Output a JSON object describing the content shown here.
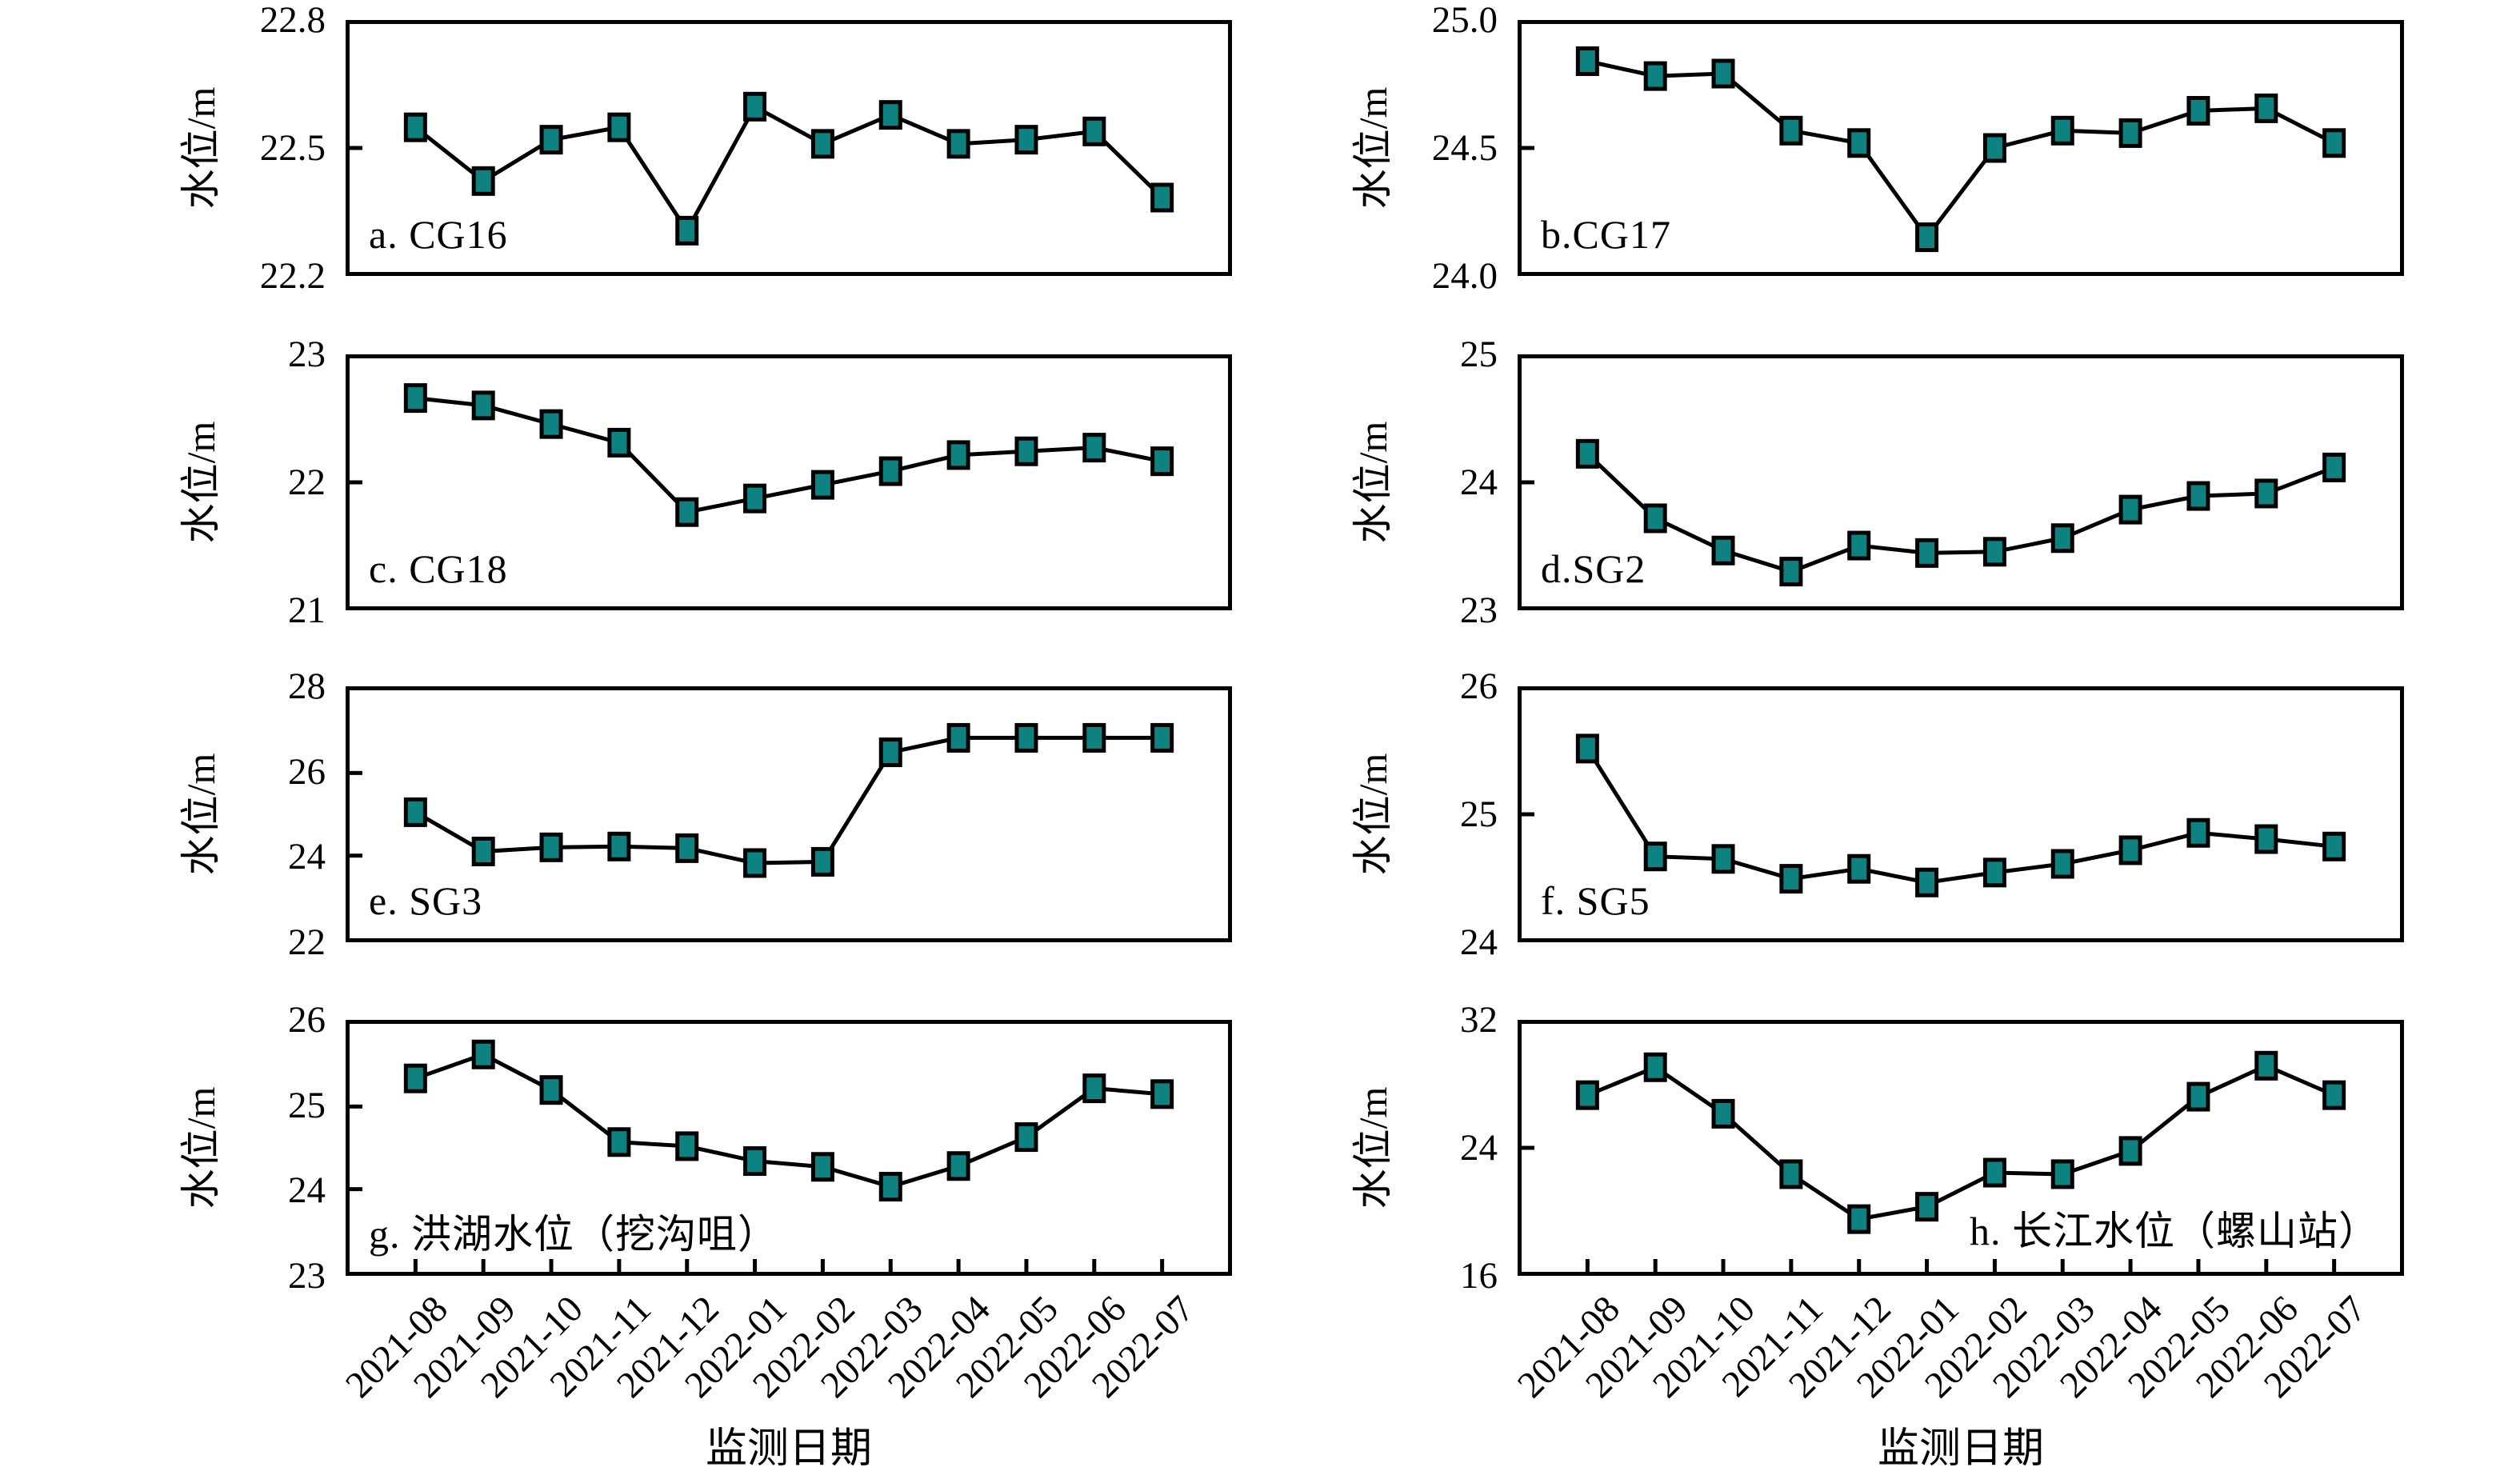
{
  "figure": {
    "background": "#ffffff",
    "xlabel": "监测日期",
    "ylabel": "水位/m"
  },
  "chart_data": {
    "type": "line",
    "layout": "4-rows-2-cols-small-multiples",
    "marker": "square",
    "marker_color": "#0e8181",
    "marker_edge_color": "#000000",
    "line_color": "#000000",
    "xlabel": "监测日期",
    "ylabel": "水位/m",
    "categories": [
      "2021-08",
      "2021-09",
      "2021-10",
      "2021-11",
      "2021-12",
      "2022-01",
      "2022-02",
      "2022-03",
      "2022-04",
      "2022-05",
      "2022-06",
      "2022-07"
    ],
    "panels": [
      {
        "id": "a",
        "label": "a. CG16",
        "station": "CG16",
        "values": [
          22.55,
          22.42,
          22.52,
          22.55,
          22.3,
          22.6,
          22.51,
          22.58,
          22.51,
          22.52,
          22.54,
          22.38
        ],
        "ylim": [
          22.2,
          22.8
        ],
        "yticks": [
          22.2,
          22.5,
          22.8
        ],
        "ytick_labels": [
          "22.2",
          "22.5",
          "22.8"
        ],
        "inner_yticks": [
          22.5
        ],
        "label_anchor": "bottom-left",
        "show_xticks": false
      },
      {
        "id": "b",
        "label": "b.CG17",
        "station": "CG17",
        "values": [
          24.85,
          24.79,
          24.8,
          24.57,
          24.52,
          24.14,
          24.5,
          24.57,
          24.56,
          24.65,
          24.66,
          24.52
        ],
        "ylim": [
          24.0,
          25.0
        ],
        "yticks": [
          24.0,
          24.5,
          25.0
        ],
        "ytick_labels": [
          "24.0",
          "24.5",
          "25.0"
        ],
        "inner_yticks": [
          24.5
        ],
        "label_anchor": "bottom-left",
        "show_xticks": false
      },
      {
        "id": "c",
        "label": "c. CG18",
        "station": "CG18",
        "values": [
          22.68,
          22.62,
          22.47,
          22.32,
          21.76,
          21.87,
          21.98,
          22.09,
          22.22,
          22.25,
          22.28,
          22.17
        ],
        "ylim": [
          21,
          23
        ],
        "yticks": [
          21,
          22,
          23
        ],
        "ytick_labels": [
          "21",
          "22",
          "23"
        ],
        "inner_yticks": [
          22
        ],
        "label_anchor": "bottom-left",
        "show_xticks": false
      },
      {
        "id": "d",
        "label": "d.SG2",
        "station": "SG2",
        "values": [
          24.23,
          23.71,
          23.45,
          23.28,
          23.49,
          23.43,
          23.44,
          23.55,
          23.78,
          23.89,
          23.91,
          24.12
        ],
        "ylim": [
          23,
          25
        ],
        "yticks": [
          23,
          24,
          25
        ],
        "ytick_labels": [
          "23",
          "24",
          "25"
        ],
        "inner_yticks": [
          24
        ],
        "label_anchor": "bottom-left",
        "show_xticks": false
      },
      {
        "id": "e",
        "label": "e. SG3",
        "station": "SG3",
        "values": [
          25.05,
          24.1,
          24.2,
          24.22,
          24.18,
          23.82,
          23.85,
          26.5,
          26.85,
          26.85,
          26.85,
          26.85
        ],
        "ylim": [
          22,
          28
        ],
        "yticks": [
          22,
          24,
          26,
          28
        ],
        "ytick_labels": [
          "22",
          "24",
          "26",
          "28"
        ],
        "inner_yticks": [
          24,
          26
        ],
        "label_anchor": "bottom-left",
        "show_xticks": false
      },
      {
        "id": "f",
        "label": "f. SG5",
        "station": "SG5",
        "values": [
          25.53,
          24.66,
          24.64,
          24.48,
          24.56,
          24.45,
          24.53,
          24.6,
          24.71,
          24.85,
          24.8,
          24.74
        ],
        "ylim": [
          24,
          26
        ],
        "yticks": [
          24,
          25,
          26
        ],
        "ytick_labels": [
          "24",
          "25",
          "26"
        ],
        "inner_yticks": [
          25
        ],
        "label_anchor": "bottom-left",
        "show_xticks": false
      },
      {
        "id": "g",
        "label": "g. 洪湖水位（挖沟咀）",
        "station": "洪湖水位（挖沟咀）",
        "values": [
          25.34,
          25.63,
          25.2,
          24.57,
          24.52,
          24.34,
          24.27,
          24.03,
          24.28,
          24.63,
          25.22,
          25.15
        ],
        "ylim": [
          23,
          26
        ],
        "yticks": [
          23,
          24,
          25,
          26
        ],
        "ytick_labels": [
          "23",
          "24",
          "25",
          "26"
        ],
        "inner_yticks": [
          24,
          25
        ],
        "label_anchor": "bottom-left",
        "show_xticks": true
      },
      {
        "id": "h",
        "label": "h. 长江水位（螺山站）",
        "station": "长江水位（螺山站）",
        "values": [
          27.4,
          29.2,
          26.2,
          22.3,
          19.4,
          20.2,
          22.4,
          22.3,
          23.8,
          27.3,
          29.3,
          27.4
        ],
        "ylim": [
          16,
          32
        ],
        "yticks": [
          16,
          24,
          32
        ],
        "ytick_labels": [
          "16",
          "24",
          "32"
        ],
        "inner_yticks": [
          24
        ],
        "label_anchor": "bottom-right",
        "show_xticks": true
      }
    ]
  }
}
